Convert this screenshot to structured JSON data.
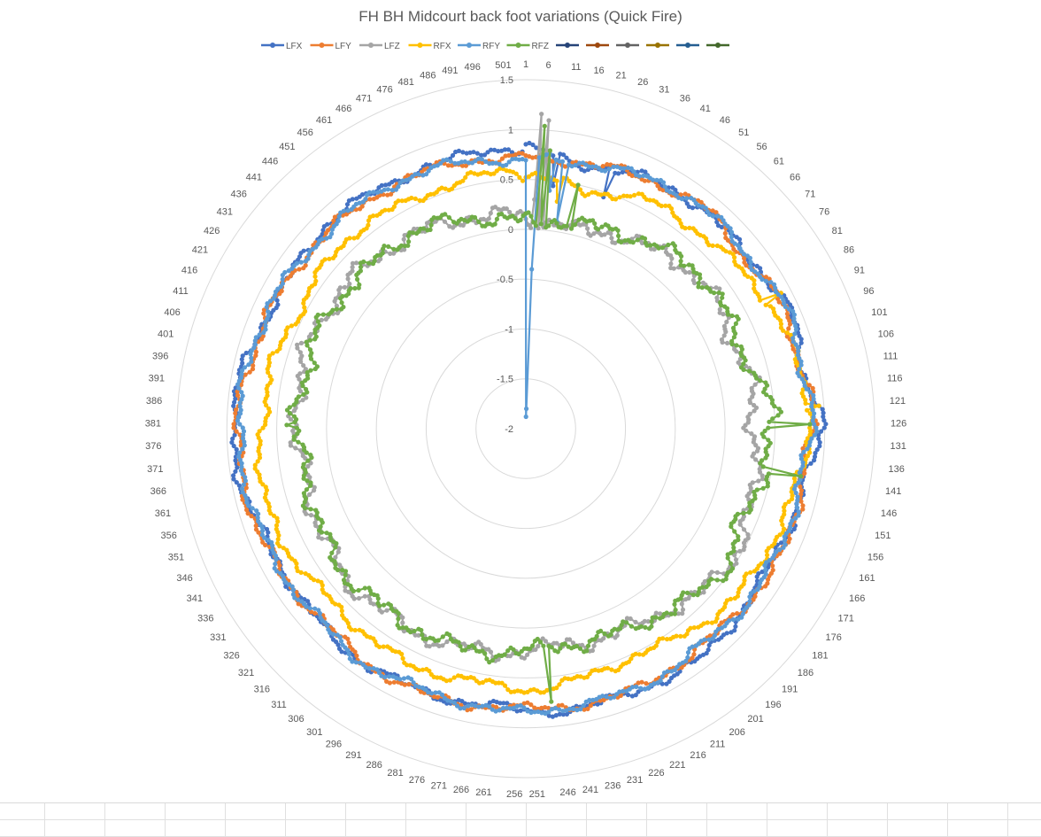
{
  "chart_data": {
    "type": "radar",
    "title": "FH BH Midcourt back foot variations (Quick Fire)",
    "num_points": 505,
    "category_label_step": 5,
    "category_labels": [
      "1",
      "6",
      "11",
      "16",
      "21",
      "26",
      "31",
      "36",
      "41",
      "46",
      "51",
      "56",
      "61",
      "66",
      "71",
      "76",
      "81",
      "86",
      "91",
      "96",
      "101",
      "106",
      "111",
      "116",
      "121",
      "126",
      "131",
      "136",
      "141",
      "146",
      "151",
      "156",
      "161",
      "166",
      "171",
      "176",
      "181",
      "186",
      "191",
      "196",
      "201",
      "206",
      "211",
      "216",
      "221",
      "226",
      "231",
      "236",
      "241",
      "246",
      "251",
      "256",
      "261",
      "266",
      "271",
      "276",
      "281",
      "286",
      "291",
      "296",
      "301",
      "306",
      "311",
      "316",
      "321",
      "326",
      "331",
      "336",
      "341",
      "346",
      "351",
      "356",
      "361",
      "366",
      "371",
      "376",
      "381",
      "386",
      "391",
      "396",
      "401",
      "406",
      "411",
      "416",
      "421",
      "426",
      "431",
      "436",
      "441",
      "446",
      "451",
      "456",
      "461",
      "466",
      "471",
      "476",
      "481",
      "486",
      "491",
      "496",
      "501"
    ],
    "radial_range": [
      -2,
      1.5
    ],
    "radial_ticks": [
      -2,
      -1.5,
      -1,
      -0.5,
      0,
      0.5,
      1,
      1.5
    ],
    "radial_tick_labels": [
      "-2",
      "-1.5",
      "-1",
      "-0.5",
      "0",
      "0.5",
      "1",
      "1.5"
    ],
    "grid": true,
    "legend_position": "top",
    "series": [
      {
        "name": "LFX",
        "color": "#4472C4",
        "marker": true,
        "profile": [
          [
            0,
            0.82
          ],
          [
            15,
            0.7
          ],
          [
            35,
            0.78
          ],
          [
            55,
            0.84
          ],
          [
            70,
            0.8
          ],
          [
            90,
            0.9
          ],
          [
            110,
            0.84
          ],
          [
            125,
            0.97
          ],
          [
            140,
            0.86
          ],
          [
            160,
            0.8
          ],
          [
            180,
            0.82
          ],
          [
            200,
            0.9
          ],
          [
            220,
            0.85
          ],
          [
            240,
            0.86
          ],
          [
            260,
            0.8
          ],
          [
            280,
            0.82
          ],
          [
            300,
            0.86
          ],
          [
            320,
            0.84
          ],
          [
            340,
            0.81
          ],
          [
            360,
            0.9
          ],
          [
            380,
            0.95
          ],
          [
            400,
            0.88
          ],
          [
            420,
            0.8
          ],
          [
            440,
            0.86
          ],
          [
            460,
            0.82
          ],
          [
            480,
            0.8
          ],
          [
            500,
            0.82
          ],
          [
            504,
            0.8
          ]
        ],
        "dips": [
          [
            9,
            0.45
          ],
          [
            26,
            0.45
          ]
        ]
      },
      {
        "name": "LFY",
        "color": "#ED7D31",
        "marker": true,
        "profile": [
          [
            0,
            0.72
          ],
          [
            15,
            0.72
          ],
          [
            35,
            0.77
          ],
          [
            55,
            0.86
          ],
          [
            70,
            0.78
          ],
          [
            90,
            0.85
          ],
          [
            110,
            0.82
          ],
          [
            125,
            0.9
          ],
          [
            140,
            0.8
          ],
          [
            160,
            0.87
          ],
          [
            180,
            0.82
          ],
          [
            200,
            0.8
          ],
          [
            220,
            0.84
          ],
          [
            240,
            0.82
          ],
          [
            260,
            0.8
          ],
          [
            280,
            0.85
          ],
          [
            300,
            0.84
          ],
          [
            320,
            0.8
          ],
          [
            340,
            0.86
          ],
          [
            360,
            0.88
          ],
          [
            380,
            0.9
          ],
          [
            400,
            0.84
          ],
          [
            420,
            0.82
          ],
          [
            440,
            0.8
          ],
          [
            460,
            0.78
          ],
          [
            480,
            0.76
          ],
          [
            500,
            0.72
          ],
          [
            504,
            0.72
          ]
        ],
        "dips": []
      },
      {
        "name": "LFZ",
        "color": "#A5A5A5",
        "marker": true,
        "profile": [
          [
            0,
            0.1
          ],
          [
            20,
            0.05
          ],
          [
            35,
            0.15
          ],
          [
            50,
            0.2
          ],
          [
            70,
            0.32
          ],
          [
            90,
            0.25
          ],
          [
            110,
            0.3
          ],
          [
            130,
            0.28
          ],
          [
            150,
            0.38
          ],
          [
            170,
            0.45
          ],
          [
            185,
            0.42
          ],
          [
            200,
            0.3
          ],
          [
            220,
            0.24
          ],
          [
            240,
            0.2
          ],
          [
            260,
            0.25
          ],
          [
            280,
            0.3
          ],
          [
            300,
            0.32
          ],
          [
            320,
            0.35
          ],
          [
            340,
            0.3
          ],
          [
            360,
            0.26
          ],
          [
            380,
            0.3
          ],
          [
            400,
            0.35
          ],
          [
            420,
            0.32
          ],
          [
            440,
            0.3
          ],
          [
            460,
            0.25
          ],
          [
            480,
            0.2
          ],
          [
            500,
            0.15
          ],
          [
            504,
            0.12
          ]
        ],
        "dips": [
          [
            4,
            1.16
          ],
          [
            6,
            1.1
          ],
          [
            3,
            0.3
          ]
        ]
      },
      {
        "name": "RFX",
        "color": "#FFC000",
        "marker": true,
        "profile": [
          [
            0,
            0.55
          ],
          [
            20,
            0.45
          ],
          [
            40,
            0.6
          ],
          [
            55,
            0.62
          ],
          [
            70,
            0.66
          ],
          [
            90,
            0.75
          ],
          [
            110,
            0.82
          ],
          [
            120,
            0.86
          ],
          [
            140,
            0.78
          ],
          [
            160,
            0.72
          ],
          [
            180,
            0.7
          ],
          [
            200,
            0.6
          ],
          [
            215,
            0.52
          ],
          [
            230,
            0.55
          ],
          [
            250,
            0.62
          ],
          [
            270,
            0.58
          ],
          [
            290,
            0.64
          ],
          [
            300,
            0.62
          ],
          [
            320,
            0.6
          ],
          [
            340,
            0.68
          ],
          [
            360,
            0.72
          ],
          [
            380,
            0.64
          ],
          [
            400,
            0.62
          ],
          [
            420,
            0.55
          ],
          [
            440,
            0.62
          ],
          [
            460,
            0.58
          ],
          [
            480,
            0.55
          ],
          [
            500,
            0.6
          ],
          [
            504,
            0.55
          ]
        ],
        "dips": [
          [
            87,
            0.9
          ],
          [
            120,
            0.95
          ],
          [
            11,
            0.3
          ]
        ]
      },
      {
        "name": "RFY",
        "color": "#5B9BD5",
        "marker": true,
        "profile": [
          [
            0,
            0.7
          ],
          [
            15,
            0.72
          ],
          [
            35,
            0.78
          ],
          [
            55,
            0.86
          ],
          [
            70,
            0.8
          ],
          [
            90,
            0.88
          ],
          [
            110,
            0.84
          ],
          [
            125,
            0.88
          ],
          [
            140,
            0.8
          ],
          [
            160,
            0.82
          ],
          [
            180,
            0.82
          ],
          [
            200,
            0.8
          ],
          [
            220,
            0.84
          ],
          [
            240,
            0.82
          ],
          [
            260,
            0.84
          ],
          [
            280,
            0.8
          ],
          [
            300,
            0.86
          ],
          [
            320,
            0.82
          ],
          [
            340,
            0.84
          ],
          [
            360,
            0.86
          ],
          [
            380,
            0.88
          ],
          [
            400,
            0.86
          ],
          [
            420,
            0.84
          ],
          [
            440,
            0.8
          ],
          [
            460,
            0.8
          ],
          [
            480,
            0.76
          ],
          [
            500,
            0.7
          ],
          [
            504,
            0.7
          ]
        ],
        "dips": [
          [
            1,
            -1.88
          ],
          [
            2,
            -1.8
          ],
          [
            3,
            -0.4
          ],
          [
            8,
            0.4
          ],
          [
            12,
            0.1
          ]
        ]
      },
      {
        "name": "RFZ",
        "color": "#70AD47",
        "marker": true,
        "profile": [
          [
            0,
            0.1
          ],
          [
            20,
            0.1
          ],
          [
            35,
            0.18
          ],
          [
            50,
            0.25
          ],
          [
            70,
            0.35
          ],
          [
            90,
            0.3
          ],
          [
            110,
            0.35
          ],
          [
            120,
            0.5
          ],
          [
            140,
            0.42
          ],
          [
            160,
            0.35
          ],
          [
            180,
            0.45
          ],
          [
            200,
            0.3
          ],
          [
            220,
            0.24
          ],
          [
            240,
            0.2
          ],
          [
            260,
            0.25
          ],
          [
            280,
            0.3
          ],
          [
            300,
            0.28
          ],
          [
            320,
            0.32
          ],
          [
            340,
            0.3
          ],
          [
            360,
            0.25
          ],
          [
            380,
            0.3
          ],
          [
            400,
            0.28
          ],
          [
            420,
            0.3
          ],
          [
            440,
            0.25
          ],
          [
            460,
            0.28
          ],
          [
            480,
            0.2
          ],
          [
            500,
            0.1
          ],
          [
            504,
            0.08
          ]
        ],
        "dips": [
          [
            5,
            1.04
          ],
          [
            7,
            0.8
          ],
          [
            17,
            0.5
          ],
          [
            125,
            0.85
          ],
          [
            140,
            0.8
          ],
          [
            245,
            0.75
          ],
          [
            380,
            0.4
          ]
        ]
      },
      {
        "name": "",
        "color": "#264478",
        "marker": true,
        "profile": [],
        "dips": []
      },
      {
        "name": "",
        "color": "#9E480E",
        "marker": true,
        "profile": [],
        "dips": []
      },
      {
        "name": "",
        "color": "#636363",
        "marker": true,
        "profile": [],
        "dips": []
      },
      {
        "name": "",
        "color": "#997300",
        "marker": true,
        "profile": [],
        "dips": []
      },
      {
        "name": "",
        "color": "#255E91",
        "marker": true,
        "profile": [],
        "dips": []
      },
      {
        "name": "",
        "color": "#43682B",
        "marker": true,
        "profile": [],
        "dips": []
      }
    ]
  },
  "spreadsheet": {
    "visible_rows": 2,
    "visible_columns": 18
  }
}
